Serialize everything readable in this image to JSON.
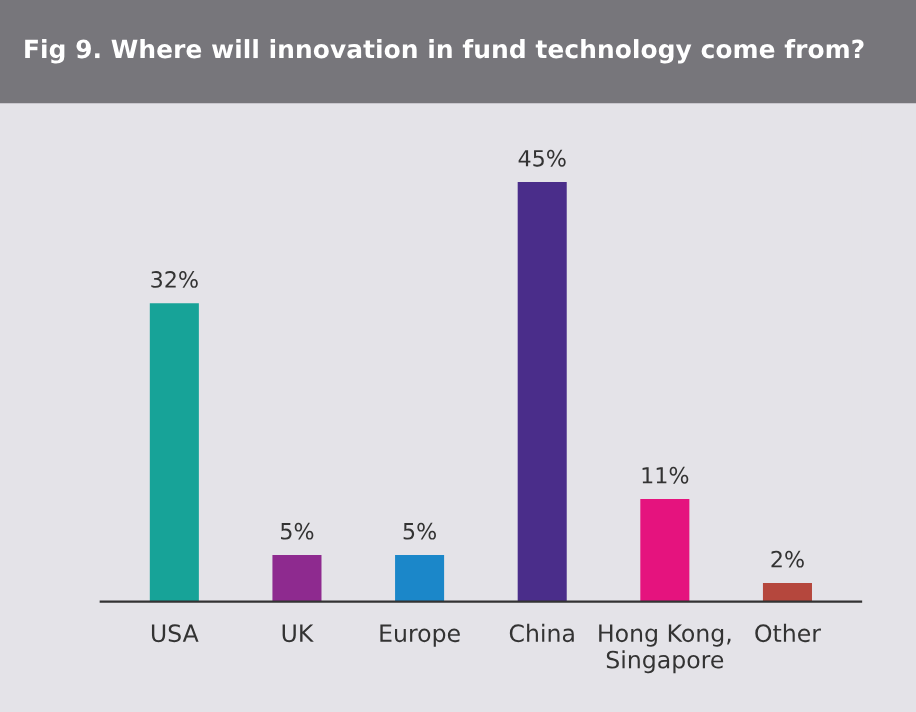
{
  "chart_data": {
    "type": "bar",
    "title": "Fig 9. Where will innovation in fund technology come from?",
    "categories": [
      "USA",
      "UK",
      "Europe",
      "China",
      "Hong Kong,\nSingapore",
      "Other"
    ],
    "values": [
      32,
      5,
      5,
      45,
      11,
      2
    ],
    "colors": [
      "#17a398",
      "#8e2a8f",
      "#1b87c9",
      "#4a2d8a",
      "#e5137e",
      "#b5473d"
    ],
    "value_labels": [
      "32%",
      "5%",
      "5%",
      "45%",
      "11%",
      "2%"
    ],
    "grid": false,
    "legend": false
  }
}
